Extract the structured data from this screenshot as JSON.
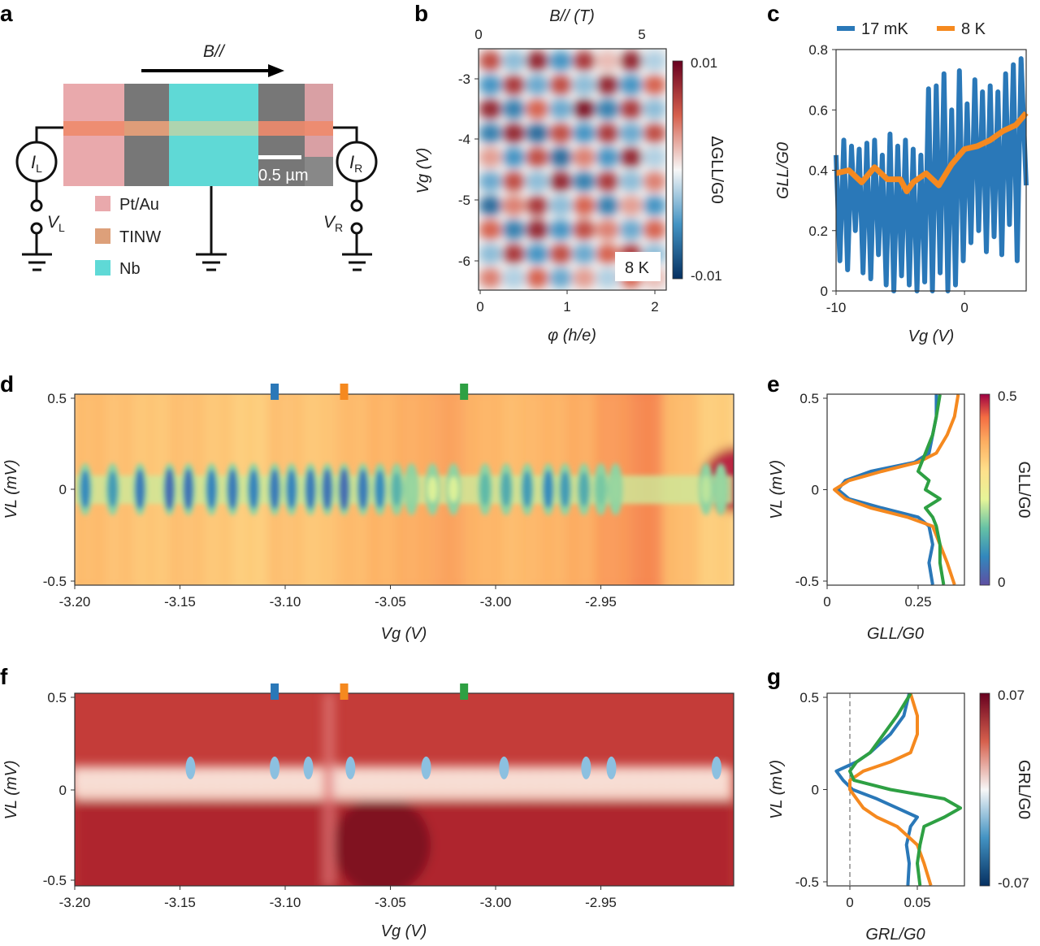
{
  "panels": {
    "a": "a",
    "b": "b",
    "c": "c",
    "d": "d",
    "e": "e",
    "f": "f",
    "g": "g"
  },
  "colors": {
    "blue": "#2a78b8",
    "orange": "#f5891f",
    "green": "#2ea043",
    "pt_au": "#e9a9ac",
    "tinw": "#dda07a",
    "nb": "#5fd9d6"
  },
  "schematic": {
    "field_label": "B//",
    "current_left": "I",
    "current_left_sub": "L",
    "current_right": "I",
    "current_right_sub": "R",
    "voltage_left": "V",
    "voltage_left_sub": "L",
    "voltage_right": "V",
    "voltage_right_sub": "R",
    "scale_bar": "0.5 µm",
    "legend": [
      {
        "label": "Pt/Au",
        "color": "#e9a9ac"
      },
      {
        "label": "TINW",
        "color": "#dda07a"
      },
      {
        "label": "Nb",
        "color": "#5fd9d6"
      }
    ]
  },
  "chart_data": [
    {
      "panel": "b",
      "type": "heatmap",
      "xlabel": "φ (h/e)",
      "ylabel": "Vg (V)",
      "top_xlabel": "B// (T)",
      "xlim": [
        0,
        2.1
      ],
      "ylim": [
        -6.5,
        -2.5
      ],
      "xticks": [
        "0",
        "1",
        "2"
      ],
      "yticks": [
        "-3",
        "-4",
        "-5",
        "-6"
      ],
      "top_xticks": [
        "0",
        "5"
      ],
      "colorbar": {
        "label": "ΔGLL/G0",
        "min": -0.01,
        "max": 0.01,
        "ticks": [
          "0.01",
          "-0.01"
        ],
        "colormap": "RdBu"
      },
      "annotation": "8 K",
      "grid_values": [
        [
          0.006,
          -0.003,
          0.008,
          -0.005,
          0.007,
          0.002,
          0.008,
          -0.002
        ],
        [
          -0.005,
          0.007,
          -0.004,
          0.006,
          -0.003,
          0.008,
          -0.005,
          0.005
        ],
        [
          0.008,
          -0.006,
          0.005,
          -0.004,
          0.009,
          -0.006,
          0.007,
          -0.003
        ],
        [
          -0.006,
          0.008,
          -0.007,
          0.006,
          -0.005,
          0.007,
          -0.004,
          0.006
        ],
        [
          0.003,
          -0.005,
          0.006,
          -0.007,
          0.004,
          -0.005,
          0.008,
          -0.002
        ],
        [
          -0.004,
          0.006,
          -0.003,
          0.008,
          -0.006,
          0.007,
          -0.003,
          0.004
        ],
        [
          -0.007,
          0.004,
          0.007,
          -0.003,
          0.005,
          -0.006,
          0.003,
          -0.005
        ],
        [
          0.005,
          -0.006,
          0.008,
          -0.005,
          0.006,
          0.004,
          -0.004,
          0.005
        ],
        [
          -0.003,
          0.007,
          -0.005,
          0.006,
          -0.004,
          0.005,
          0.007,
          -0.003
        ],
        [
          0.004,
          -0.002,
          0.005,
          -0.004,
          0.003,
          -0.002,
          0.005,
          0.002
        ]
      ]
    },
    {
      "panel": "c",
      "type": "line",
      "xlabel": "Vg (V)",
      "ylabel": "GLL/G0",
      "xlim": [
        -10,
        4.8
      ],
      "ylim": [
        0,
        0.8
      ],
      "xticks": [
        "-10",
        "0"
      ],
      "yticks": [
        "0",
        "0.2",
        "0.4",
        "0.6",
        "0.8"
      ],
      "legend_position": "top",
      "series": [
        {
          "name": "17 mK",
          "color": "#2a78b8",
          "x": [
            -10,
            -9.7,
            -9.4,
            -9.1,
            -8.8,
            -8.5,
            -8.2,
            -7.9,
            -7.6,
            -7.3,
            -7,
            -6.7,
            -6.4,
            -6.1,
            -5.8,
            -5.5,
            -5.2,
            -4.9,
            -4.6,
            -4.3,
            -4,
            -3.7,
            -3.4,
            -3.1,
            -2.8,
            -2.5,
            -2.2,
            -1.9,
            -1.6,
            -1.3,
            -1,
            -0.7,
            -0.4,
            -0.1,
            0.2,
            0.5,
            0.8,
            1.1,
            1.4,
            1.7,
            2,
            2.3,
            2.6,
            2.9,
            3.2,
            3.5,
            3.8,
            4.1,
            4.4,
            4.8
          ],
          "y": [
            0.45,
            0.1,
            0.5,
            0.07,
            0.48,
            0.2,
            0.47,
            0.06,
            0.49,
            0.04,
            0.5,
            0.12,
            0.45,
            0.02,
            0.52,
            0.0,
            0.48,
            0.05,
            0.5,
            0.02,
            0.47,
            0.0,
            0.45,
            0.03,
            0.67,
            0.0,
            0.68,
            0.06,
            0.72,
            0.0,
            0.6,
            0.02,
            0.73,
            0.1,
            0.62,
            0.16,
            0.7,
            0.2,
            0.66,
            0.13,
            0.68,
            0.18,
            0.66,
            0.12,
            0.72,
            0.22,
            0.75,
            0.1,
            0.77,
            0.35
          ]
        },
        {
          "name": "8 K",
          "color": "#f5891f",
          "x": [
            -10,
            -9,
            -8,
            -7,
            -6,
            -5,
            -4.5,
            -4,
            -3,
            -2,
            -1,
            0,
            1,
            2,
            3,
            4,
            4.8
          ],
          "y": [
            0.39,
            0.4,
            0.36,
            0.41,
            0.37,
            0.37,
            0.33,
            0.36,
            0.39,
            0.35,
            0.42,
            0.47,
            0.48,
            0.5,
            0.53,
            0.55,
            0.59
          ]
        }
      ]
    },
    {
      "panel": "d",
      "type": "heatmap",
      "xlabel": "Vg (V)",
      "ylabel": "VL (mV)",
      "xlim": [
        -3.2,
        -2.887
      ],
      "ylim": [
        -0.52,
        0.52
      ],
      "xticks": [
        "-3.20",
        "-3.15",
        "-3.10",
        "-3.05",
        "-3.00",
        "-2.95"
      ],
      "yticks": [
        "0.5",
        "0",
        "-0.5"
      ],
      "colorbar": {
        "label": "GLL/G0",
        "min": 0,
        "max": 0.5,
        "ticks": [
          "0.5",
          "0"
        ],
        "colormap": "Spectral"
      },
      "markers": [
        {
          "vg": -3.105,
          "color": "#2a78b8"
        },
        {
          "vg": -3.072,
          "color": "#f5891f"
        },
        {
          "vg": -3.015,
          "color": "#2ea043"
        }
      ],
      "background_G": [
        0.36,
        0.35,
        0.34,
        0.35,
        0.34,
        0.33,
        0.35,
        0.34,
        0.36,
        0.37,
        0.38,
        0.39,
        0.37,
        0.36,
        0.37,
        0.38,
        0.4,
        0.42,
        0.36,
        0.33
      ],
      "zero_bias_dips": [
        {
          "vg": -3.195,
          "G": 0.08
        },
        {
          "vg": -3.182,
          "G": 0.1
        },
        {
          "vg": -3.169,
          "G": 0.06
        },
        {
          "vg": -3.155,
          "G": 0.04
        },
        {
          "vg": -3.146,
          "G": 0.05
        },
        {
          "vg": -3.135,
          "G": 0.07
        },
        {
          "vg": -3.125,
          "G": 0.06
        },
        {
          "vg": -3.115,
          "G": 0.07
        },
        {
          "vg": -3.105,
          "G": 0.06
        },
        {
          "vg": -3.097,
          "G": 0.07
        },
        {
          "vg": -3.088,
          "G": 0.06
        },
        {
          "vg": -3.08,
          "G": 0.05
        },
        {
          "vg": -3.072,
          "G": 0.04
        },
        {
          "vg": -3.063,
          "G": 0.06
        },
        {
          "vg": -3.055,
          "G": 0.08
        },
        {
          "vg": -3.047,
          "G": 0.13
        },
        {
          "vg": -3.04,
          "G": 0.18
        },
        {
          "vg": -3.03,
          "G": 0.22
        },
        {
          "vg": -3.02,
          "G": 0.22
        },
        {
          "vg": -3.005,
          "G": 0.14
        },
        {
          "vg": -2.995,
          "G": 0.12
        },
        {
          "vg": -2.985,
          "G": 0.1
        },
        {
          "vg": -2.975,
          "G": 0.08
        },
        {
          "vg": -2.967,
          "G": 0.1
        },
        {
          "vg": -2.958,
          "G": 0.12
        },
        {
          "vg": -2.95,
          "G": 0.16
        },
        {
          "vg": -2.943,
          "G": 0.18
        },
        {
          "vg": -2.9,
          "G": 0.2
        },
        {
          "vg": -2.893,
          "G": 0.18
        }
      ],
      "high_region": {
        "vg": -2.875,
        "G": 0.48
      }
    },
    {
      "panel": "e",
      "type": "line",
      "xlabel": "GLL/G0",
      "ylabel": "VL (mV)",
      "xlim": [
        0,
        0.38
      ],
      "ylim": [
        -0.52,
        0.52
      ],
      "xticks": [
        "0",
        "0.25"
      ],
      "yticks": [
        "0.5",
        "0",
        "-0.5"
      ],
      "colorbar": {
        "label": "GLL/G0",
        "min": 0,
        "max": 0.5,
        "ticks": [
          "0.5",
          "0"
        ],
        "colormap": "Spectral"
      },
      "VL": [
        0.52,
        0.4,
        0.3,
        0.2,
        0.15,
        0.1,
        0.05,
        0,
        -0.05,
        -0.1,
        -0.15,
        -0.2,
        -0.3,
        -0.4,
        -0.52
      ],
      "series": [
        {
          "color": "#2a78b8",
          "G": [
            0.3,
            0.3,
            0.29,
            0.28,
            0.24,
            0.12,
            0.05,
            0.03,
            0.06,
            0.15,
            0.25,
            0.28,
            0.29,
            0.28,
            0.29
          ]
        },
        {
          "color": "#f5891f",
          "G": [
            0.36,
            0.35,
            0.33,
            0.3,
            0.25,
            0.15,
            0.06,
            0.02,
            0.05,
            0.12,
            0.22,
            0.29,
            0.31,
            0.33,
            0.35
          ]
        },
        {
          "color": "#2ea043",
          "G": [
            0.31,
            0.3,
            0.29,
            0.27,
            0.26,
            0.25,
            0.28,
            0.27,
            0.31,
            0.27,
            0.29,
            0.3,
            0.31,
            0.31,
            0.32
          ]
        }
      ]
    },
    {
      "panel": "f",
      "type": "heatmap",
      "xlabel": "Vg (V)",
      "ylabel": "VL (mV)",
      "xlim": [
        -3.2,
        -2.887
      ],
      "ylim": [
        -0.52,
        0.52
      ],
      "xticks": [
        "-3.20",
        "-3.15",
        "-3.10",
        "-3.05",
        "-3.00",
        "-2.95"
      ],
      "yticks": [
        "0.5",
        "0",
        "-0.5"
      ],
      "colorbar": {
        "label": "GRL/G0",
        "min": -0.07,
        "max": 0.07,
        "ticks": [
          "0.07",
          "-0.07"
        ],
        "colormap": "RdBu"
      },
      "markers": [
        {
          "vg": -3.105,
          "color": "#2a78b8"
        },
        {
          "vg": -3.072,
          "color": "#f5891f"
        },
        {
          "vg": -3.015,
          "color": "#2ea043"
        }
      ],
      "negative_spots": [
        -3.145,
        -3.105,
        -3.089,
        -3.069,
        -3.033,
        -2.996,
        -2.957,
        -2.945,
        -2.895
      ]
    },
    {
      "panel": "g",
      "type": "line",
      "xlabel": "GRL/G0",
      "ylabel": "VL (mV)",
      "xlim": [
        -0.017,
        0.085
      ],
      "ylim": [
        -0.52,
        0.52
      ],
      "xticks": [
        "0",
        "0.05"
      ],
      "yticks": [
        "0.5",
        "0",
        "-0.5"
      ],
      "colorbar": {
        "label": "GRL/G0",
        "min": -0.07,
        "max": 0.07,
        "ticks": [
          "0.07",
          "-0.07"
        ],
        "colormap": "RdBu"
      },
      "VL": [
        0.52,
        0.4,
        0.3,
        0.2,
        0.15,
        0.1,
        0.05,
        0,
        -0.05,
        -0.1,
        -0.15,
        -0.2,
        -0.3,
        -0.4,
        -0.52
      ],
      "series": [
        {
          "color": "#2a78b8",
          "G": [
            0.044,
            0.04,
            0.03,
            0.015,
            0.005,
            -0.01,
            -0.005,
            0.002,
            0.02,
            0.035,
            0.05,
            0.045,
            0.042,
            0.044,
            0.043
          ]
        },
        {
          "color": "#f5891f",
          "G": [
            0.045,
            0.05,
            0.05,
            0.045,
            0.03,
            0.01,
            0.0,
            0.0,
            0.005,
            0.01,
            0.02,
            0.035,
            0.05,
            0.055,
            0.06
          ]
        },
        {
          "color": "#2ea043",
          "G": [
            0.045,
            0.035,
            0.025,
            0.015,
            0.005,
            0.0,
            0.003,
            0.03,
            0.07,
            0.082,
            0.07,
            0.055,
            0.052,
            0.05,
            0.052
          ]
        }
      ]
    }
  ]
}
